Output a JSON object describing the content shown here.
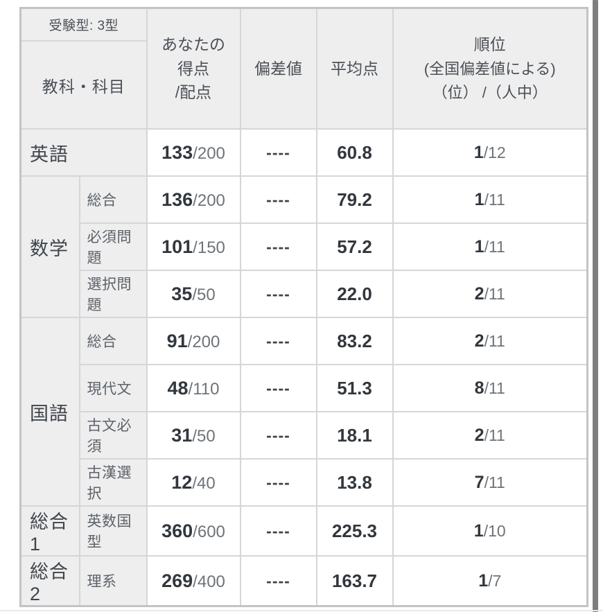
{
  "header": {
    "exam_type": "受験型: 3型",
    "subject_col": "教科・科目",
    "score_col_line1": "あなたの",
    "score_col_line2": "得点",
    "score_col_line3": "/配点",
    "deviation_col": "偏差値",
    "average_col": "平均点",
    "rank_col_line1": "順位",
    "rank_col_line2": "(全国偏差値による)",
    "rank_col_line3": "（位） /（人中）"
  },
  "colors": {
    "cell_label_bg": "#eeeeef",
    "cell_data_bg": "#ffffff",
    "border": "#d6d6d8",
    "outer_border": "#c3c3c6",
    "dark_text": "#31373d",
    "gray_text": "#6e7378",
    "scrollbar": "#7e7e80"
  },
  "rows": [
    {
      "group": "英語",
      "sub": "",
      "score_num": "133",
      "score_den": "/200",
      "dev": "----",
      "avg": "60.8",
      "rank_pos": "1",
      "rank_of": "/12"
    },
    {
      "group": "数学",
      "sub": "総合",
      "score_num": "136",
      "score_den": "/200",
      "dev": "----",
      "avg": "79.2",
      "rank_pos": "1",
      "rank_of": "/11"
    },
    {
      "sub": "必須問題",
      "score_num": "101",
      "score_den": "/150",
      "dev": "----",
      "avg": "57.2",
      "rank_pos": "1",
      "rank_of": "/11"
    },
    {
      "sub": "選択問題",
      "score_num": "35",
      "score_den": "/50",
      "dev": "----",
      "avg": "22.0",
      "rank_pos": "2",
      "rank_of": "/11"
    },
    {
      "group": "国語",
      "sub": "総合",
      "score_num": "91",
      "score_den": "/200",
      "dev": "----",
      "avg": "83.2",
      "rank_pos": "2",
      "rank_of": "/11"
    },
    {
      "sub": "現代文",
      "score_num": "48",
      "score_den": "/110",
      "dev": "----",
      "avg": "51.3",
      "rank_pos": "8",
      "rank_of": "/11"
    },
    {
      "sub": "古文必須",
      "score_num": "31",
      "score_den": "/50",
      "dev": "----",
      "avg": "18.1",
      "rank_pos": "2",
      "rank_of": "/11"
    },
    {
      "sub": "古漢選択",
      "score_num": "12",
      "score_den": "/40",
      "dev": "----",
      "avg": "13.8",
      "rank_pos": "7",
      "rank_of": "/11"
    },
    {
      "group": "総合1",
      "sub": "英数国型",
      "score_num": "360",
      "score_den": "/600",
      "dev": "----",
      "avg": "225.3",
      "rank_pos": "1",
      "rank_of": "/10"
    },
    {
      "group": "総合2",
      "sub": "理系",
      "score_num": "269",
      "score_den": "/400",
      "dev": "----",
      "avg": "163.7",
      "rank_pos": "1",
      "rank_of": "/7"
    }
  ]
}
